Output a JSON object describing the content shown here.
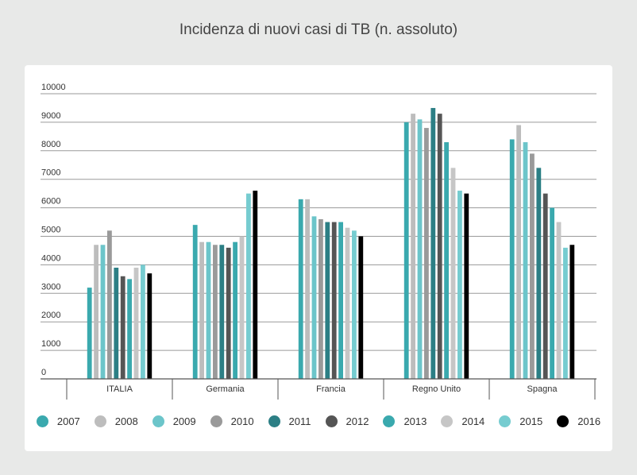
{
  "chart_data": {
    "type": "bar",
    "title": "Incidenza di nuovi casi di TB (n. assoluto)",
    "xlabel": "",
    "ylabel": "",
    "ylim": [
      0,
      10000
    ],
    "yticks": [
      "0",
      "1000",
      "2000",
      "3000",
      "4000",
      "5000",
      "6000",
      "7000",
      "8000",
      "9000",
      "10000"
    ],
    "categories": [
      "ITALIA",
      "Germania",
      "Francia",
      "Regno Unito",
      "Spagna"
    ],
    "grid": true,
    "legend_position": "bottom",
    "series": [
      {
        "name": "2007",
        "color": "#3aa9ae",
        "values": [
          3200,
          5400,
          6300,
          9000,
          8400
        ]
      },
      {
        "name": "2008",
        "color": "#bdbdbd",
        "values": [
          4700,
          4800,
          6300,
          9300,
          8900
        ]
      },
      {
        "name": "2009",
        "color": "#6cc5ca",
        "values": [
          4700,
          4800,
          5700,
          9100,
          8300
        ]
      },
      {
        "name": "2010",
        "color": "#9a9a9a",
        "values": [
          5200,
          4700,
          5600,
          8800,
          7900
        ]
      },
      {
        "name": "2011",
        "color": "#2c7f85",
        "values": [
          3900,
          4700,
          5500,
          9500,
          7400
        ]
      },
      {
        "name": "2012",
        "color": "#555555",
        "values": [
          3600,
          4600,
          5500,
          9300,
          6500
        ]
      },
      {
        "name": "2013",
        "color": "#3aa9ae",
        "values": [
          3500,
          4800,
          5500,
          8300,
          6000
        ]
      },
      {
        "name": "2014",
        "color": "#c6c6c6",
        "values": [
          3900,
          5000,
          5300,
          7400,
          5500
        ]
      },
      {
        "name": "2015",
        "color": "#76ccd0",
        "values": [
          4000,
          6500,
          5200,
          6600,
          4600
        ]
      },
      {
        "name": "2016",
        "color": "#000000",
        "values": [
          3700,
          6600,
          5000,
          6500,
          4700
        ]
      }
    ]
  }
}
